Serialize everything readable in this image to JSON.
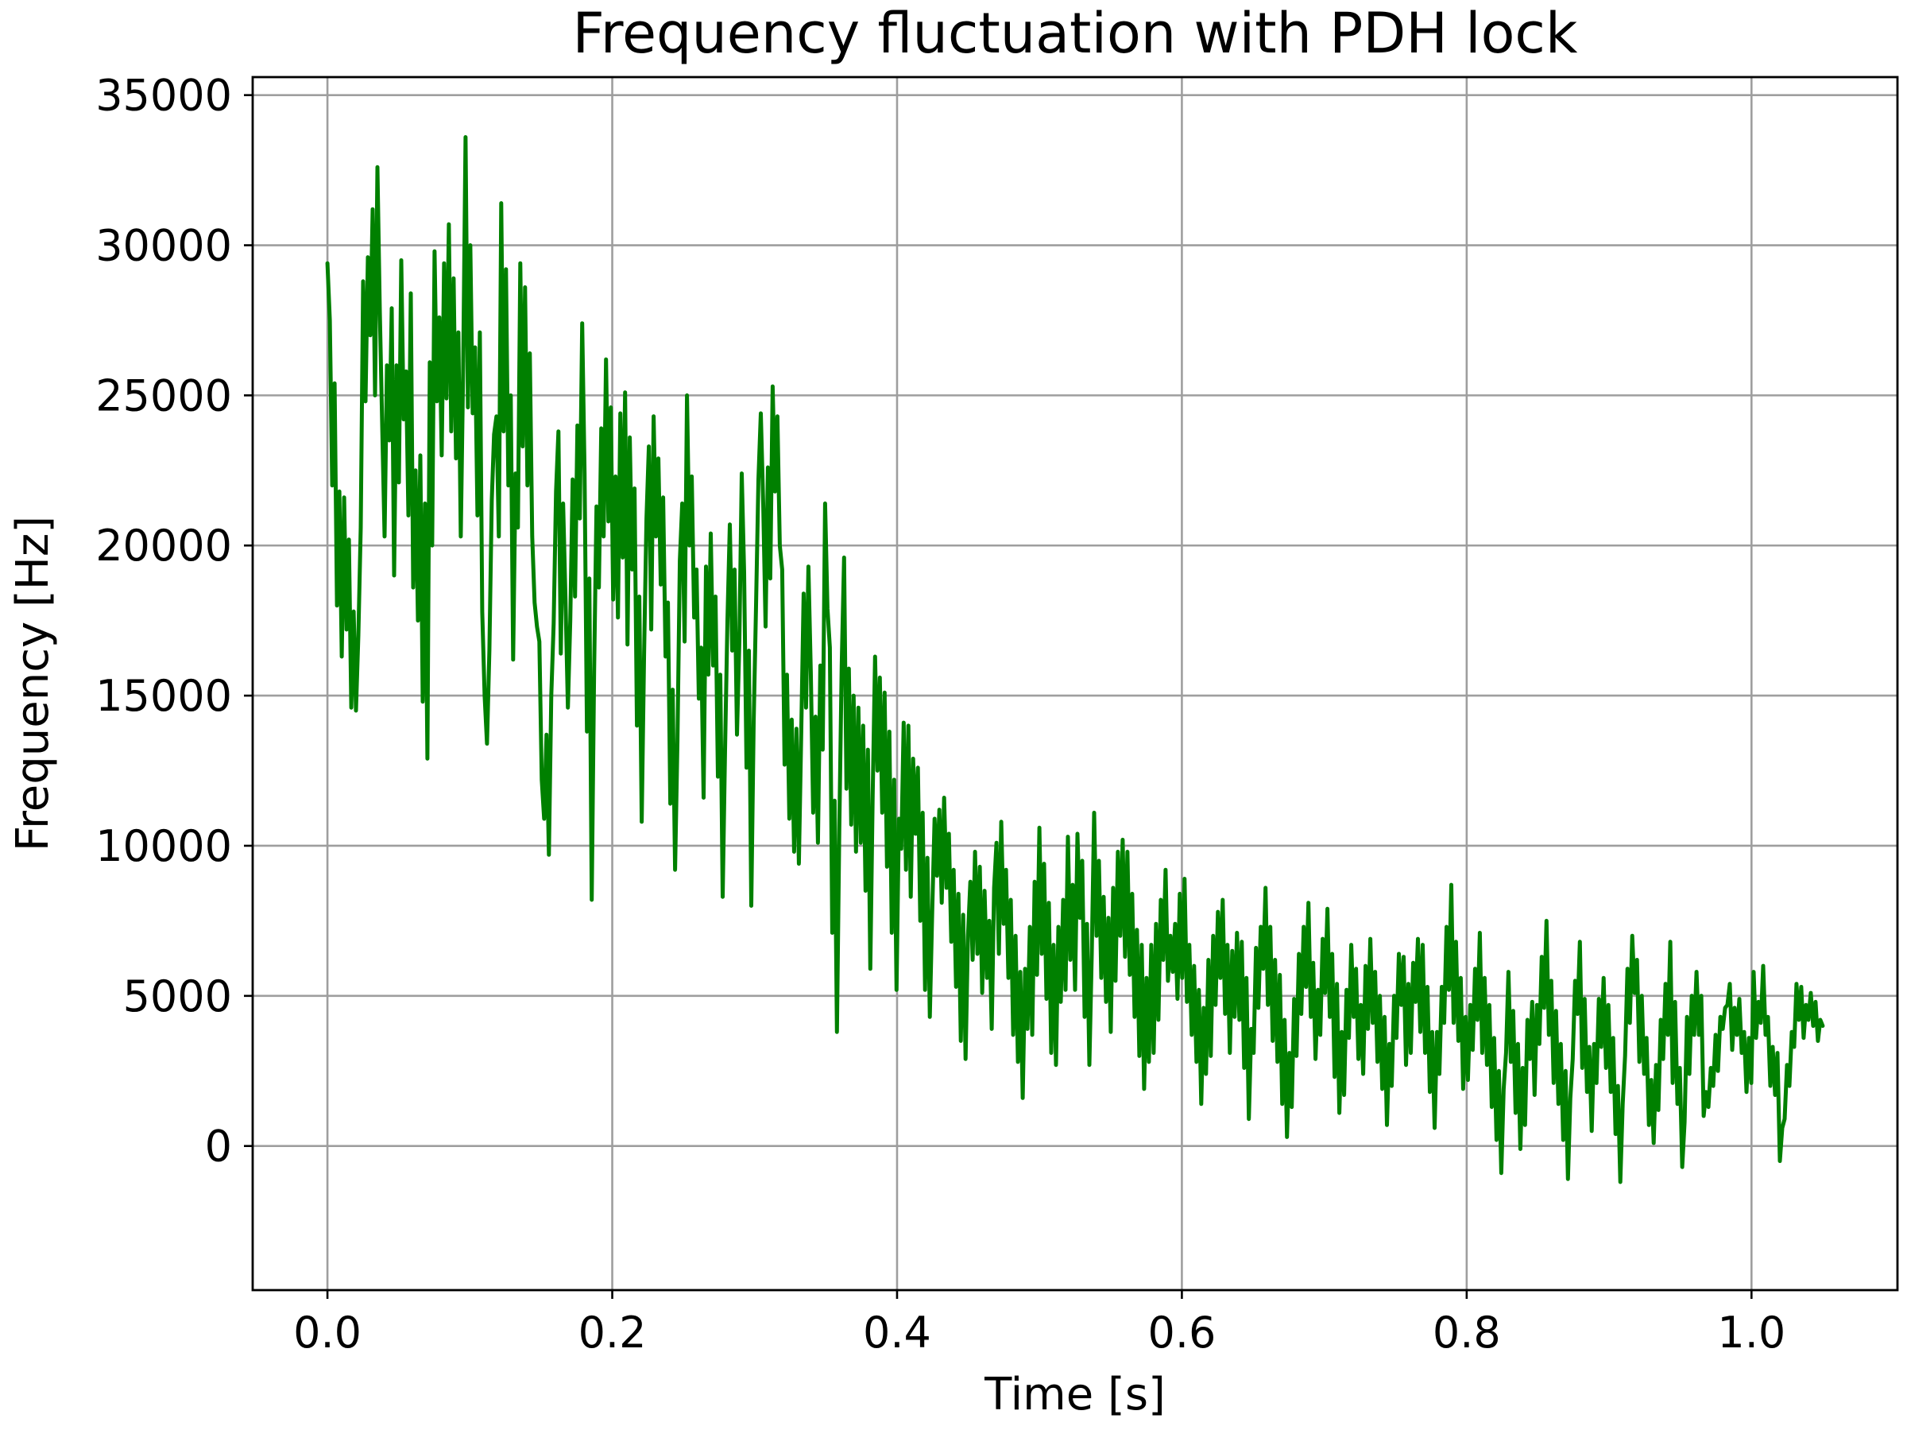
{
  "chart_data": {
    "type": "line",
    "title": "Frequency fluctuation with PDH lock",
    "xlabel": "Time [s]",
    "ylabel": "Frequency [Hz]",
    "xlim": [
      -0.0525,
      1.1025
    ],
    "ylim": [
      -4800,
      35600
    ],
    "grid": true,
    "xticks": [
      0.0,
      0.2,
      0.4,
      0.6,
      0.8,
      1.0
    ],
    "xtick_labels": [
      "0.0",
      "0.2",
      "0.4",
      "0.6",
      "0.8",
      "1.0"
    ],
    "yticks": [
      0,
      5000,
      10000,
      15000,
      20000,
      25000,
      30000,
      35000
    ],
    "ytick_labels": [
      "0",
      "5000",
      "10000",
      "15000",
      "20000",
      "25000",
      "30000",
      "35000"
    ],
    "series": [
      {
        "name": "frequency",
        "color": "#008000",
        "x_start": 0.0,
        "x_end": 1.05,
        "values": [
          29400,
          27500,
          22000,
          25400,
          18000,
          21800,
          16300,
          21600,
          17200,
          20200,
          14600,
          17800,
          14500,
          17000,
          20600,
          28800,
          24800,
          29600,
          27000,
          31200,
          25000,
          32600,
          27800,
          24000,
          20300,
          26000,
          23500,
          27900,
          19000,
          26000,
          22100,
          29500,
          24200,
          25800,
          21000,
          28400,
          18600,
          22500,
          17500,
          23000,
          14800,
          21400,
          12900,
          26100,
          20000,
          29800,
          24800,
          27600,
          23000,
          29400,
          24900,
          30700,
          23800,
          28900,
          22900,
          27100,
          20300,
          25900,
          33600,
          24600,
          30000,
          24400,
          26600,
          21000,
          27100,
          17800,
          15000,
          13400,
          16500,
          21500,
          23700,
          24300,
          20300,
          31400,
          23800,
          29200,
          22000,
          25000,
          16200,
          22400,
          20600,
          29400,
          23300,
          28600,
          22000,
          26400,
          20300,
          18100,
          17300,
          16800,
          12200,
          10900,
          13700,
          9700,
          15000,
          17400,
          21800,
          23800,
          16400,
          21400,
          18200,
          14600,
          17500,
          22200,
          18300,
          24000,
          20900,
          27400,
          22400,
          13800,
          18900,
          8200,
          15800,
          21300,
          18600,
          23900,
          20300,
          26200,
          20800,
          24600,
          18200,
          22300,
          17600,
          24400,
          19600,
          25100,
          16700,
          23600,
          19200,
          21900,
          14000,
          18300,
          10800,
          16400,
          20900,
          23300,
          17200,
          24300,
          20300,
          22900,
          18700,
          21600,
          16300,
          18100,
          11400,
          15200,
          9200,
          13500,
          19500,
          21400,
          16800,
          25000,
          20000,
          22300,
          17600,
          19200,
          14900,
          16600,
          11600,
          19300,
          15700,
          20400,
          16000,
          18300,
          12300,
          15700,
          8300,
          13200,
          17500,
          20700,
          16500,
          19200,
          13700,
          16800,
          22400,
          19100,
          12600,
          16500,
          8000,
          14100,
          18000,
          22200,
          24400,
          21400,
          17300,
          22600,
          18900,
          25300,
          21800,
          24300,
          20000,
          19200,
          12700,
          15700,
          10900,
          14200,
          9800,
          13900,
          9400,
          13800,
          18400,
          14600,
          19300,
          15800,
          11100,
          14300,
          10100,
          16000,
          13200,
          21400,
          17900,
          16600,
          7100,
          11500,
          3800,
          10600,
          16000,
          19600,
          11900,
          15900,
          10700,
          15000,
          9800,
          14600,
          10100,
          14000,
          8500,
          13200,
          5900,
          11700,
          16300,
          12500,
          15600,
          11100,
          15100,
          9300,
          13800,
          7100,
          12200,
          5200,
          10900,
          9900,
          14100,
          9200,
          14000,
          8300,
          12900,
          10400,
          12600,
          7500,
          11100,
          5200,
          9600,
          4300,
          7800,
          10900,
          9000,
          11200,
          8100,
          11600,
          8600,
          10400,
          6800,
          9200,
          5300,
          8400,
          3500,
          7700,
          2900,
          7000,
          8800,
          6200,
          9800,
          6400,
          9300,
          5100,
          8500,
          5600,
          7500,
          3900,
          8600,
          10100,
          6400,
          10800,
          7400,
          9200,
          5600,
          8200,
          3700,
          7000,
          2800,
          5800,
          1600,
          5900,
          3900,
          7300,
          3700,
          8800,
          5700,
          10600,
          6400,
          9400,
          4900,
          8100,
          3100,
          6700,
          2700,
          7300,
          4800,
          8200,
          5200,
          10300,
          6200,
          8700,
          5200,
          10400,
          7600,
          9500,
          4300,
          7400,
          2700,
          6400,
          11100,
          7000,
          9500,
          5600,
          8300,
          4800,
          7600,
          3800,
          8600,
          5500,
          9800,
          7000,
          10200,
          6300,
          9800,
          5700,
          8400,
          4300,
          7200,
          3000,
          6700,
          1900,
          5600,
          2800,
          6700,
          3100,
          7400,
          4200,
          8200,
          6200,
          9200,
          5500,
          7000,
          5800,
          7400,
          4900,
          8400,
          5600,
          8900,
          4800,
          6700,
          3700,
          6000,
          2800,
          5200,
          1400,
          4600,
          2400,
          6200,
          3000,
          7000,
          4700,
          7800,
          5600,
          8200,
          4400,
          6700,
          3100,
          6500,
          4300,
          7100,
          4200,
          6800,
          2600,
          5600,
          900,
          3900,
          3100,
          6600,
          4600,
          7300,
          5900,
          8600,
          4700,
          7300,
          3500,
          6200,
          2800,
          5700,
          1400,
          4200,
          300,
          3100,
          1300,
          4900,
          3000,
          6400,
          4400,
          7300,
          5300,
          8100,
          4300,
          6100,
          2900,
          5200,
          3700,
          6900,
          5100,
          7900,
          4300,
          6400,
          2300,
          5400,
          1100,
          3800,
          1700,
          5200,
          3600,
          6700,
          4300,
          5900,
          2900,
          4700,
          2400,
          6000,
          3900,
          6900,
          4100,
          5800,
          2800,
          5000,
          1900,
          4300,
          700,
          3400,
          2000,
          5000,
          3600,
          6400,
          4700,
          6300,
          2700,
          5400,
          3100,
          6100,
          4800,
          6900,
          3800,
          6700,
          3100,
          5300,
          1800,
          3800,
          600,
          3800,
          2400,
          5300,
          4100,
          7300,
          5200,
          8700,
          4100,
          6800,
          3500,
          5600,
          1900,
          4300,
          2200,
          4700,
          3200,
          5900,
          4200,
          7100,
          3100,
          5600,
          2700,
          4700,
          1300,
          3600,
          200,
          2500,
          -900,
          1900,
          3100,
          5800,
          2800,
          4500,
          1100,
          3400,
          -100,
          2600,
          700,
          4200,
          2900,
          4800,
          1700,
          4700,
          3400,
          6300,
          4600,
          7500,
          3700,
          5500,
          2100,
          4500,
          1400,
          3400,
          200,
          2500,
          -1100,
          1600,
          2900,
          5500,
          4400,
          6800,
          2600,
          4900,
          1800,
          3300,
          500,
          3400,
          2100,
          4900,
          3300,
          5600,
          2600,
          4700,
          1800,
          3600,
          400,
          2000,
          -1200,
          1400,
          3000,
          5900,
          4100,
          7000,
          5100,
          6200,
          2800,
          5000,
          2400,
          3600,
          700,
          2200,
          100,
          2700,
          1200,
          4200,
          2900,
          5400,
          3700,
          6800,
          2100,
          4800,
          1400,
          2600,
          -700,
          800,
          4300,
          2400,
          5000,
          3700,
          5800,
          3700,
          5000,
          1000,
          1800,
          1300,
          2600,
          2000,
          3700,
          2500,
          4300,
          3900,
          4600,
          4700,
          5400,
          3200,
          4600,
          3700,
          4900,
          3100,
          3800,
          1800,
          3600,
          2100,
          5800,
          3600,
          4800,
          4100,
          6000,
          3700,
          4300,
          2000,
          3300,
          1700,
          3100,
          -500,
          600,
          900,
          2700,
          2000,
          3800,
          3300,
          5400,
          4200,
          5300,
          3600,
          4700,
          4200,
          5100,
          4000,
          4800,
          3500,
          4200,
          4000
        ]
      }
    ]
  }
}
